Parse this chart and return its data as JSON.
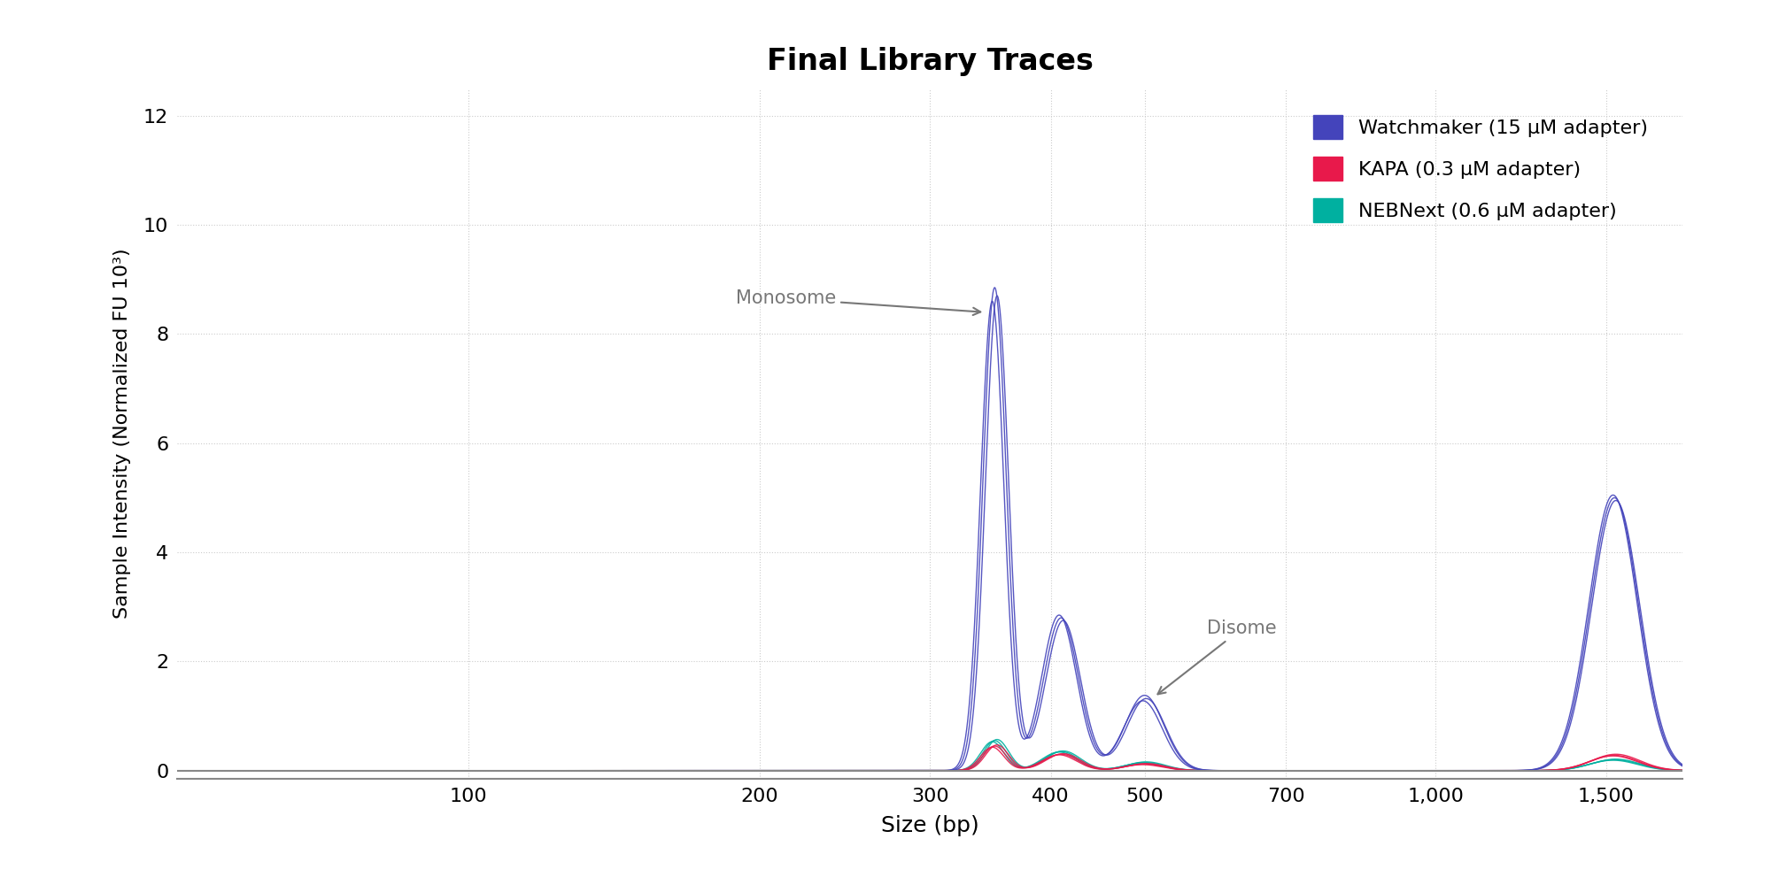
{
  "title": "Final Library Traces",
  "xlabel": "Size (bp)",
  "ylabel": "Sample Intensity (Normalized FU 10³)",
  "xlim_log": [
    1.699,
    3.255
  ],
  "ylim": [
    -0.15,
    12.5
  ],
  "yticks": [
    0,
    2,
    4,
    6,
    8,
    10,
    12
  ],
  "xtick_positions": [
    100,
    200,
    300,
    400,
    500,
    700,
    1000,
    1500
  ],
  "xtick_labels": [
    "100",
    "200",
    "300",
    "400",
    "500",
    "700",
    "1,000",
    "1,500"
  ],
  "watchmaker_color": "#4444bb",
  "kapa_color": "#e8194b",
  "nebnext_color": "#00b0a0",
  "legend_labels": [
    "Watchmaker (15 μM adapter)",
    "KAPA (0.3 μM adapter)",
    "NEBNext (0.6 μM adapter)"
  ],
  "annotation_monosome": "Monosome",
  "annotation_disome": "Disome",
  "background_color": "#ffffff",
  "grid_color": "#cccccc"
}
